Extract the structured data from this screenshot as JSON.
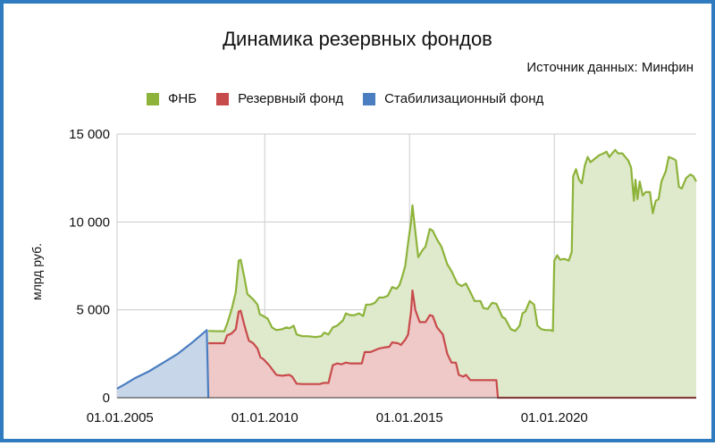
{
  "colors": {
    "fnb": "#8db33a",
    "reserve": "#c84b4b",
    "stab": "#4a7ec0",
    "fnb_fill": "#dfe9cc",
    "reserve_fill": "#efc8c8",
    "stab_fill": "#c8d6e9",
    "border": "#2f7bbf",
    "grid": "#cccccc"
  },
  "chart_data": {
    "type": "area",
    "title": "Динамика резервных фондов",
    "source": "Источник данных: Минфин",
    "ylabel": "млрд руб.",
    "xlabel": "",
    "xlim": [
      2004.9,
      2024.9
    ],
    "ylim": [
      0,
      15000
    ],
    "grid": true,
    "legend_position": "top",
    "x_ticks": [
      {
        "x": 2005,
        "label": "01.01.2005"
      },
      {
        "x": 2010,
        "label": "01.01.2010"
      },
      {
        "x": 2015,
        "label": "01.01.2015"
      },
      {
        "x": 2020,
        "label": "01.01.2020"
      }
    ],
    "y_ticks": [
      {
        "y": 0,
        "label": "0"
      },
      {
        "y": 5000,
        "label": "5 000"
      },
      {
        "y": 10000,
        "label": "10 000"
      },
      {
        "y": 15000,
        "label": "15 000"
      }
    ],
    "series": [
      {
        "name": "ФНБ",
        "key": "fnb",
        "points": [
          [
            2008.05,
            3800
          ],
          [
            2008.6,
            3780
          ],
          [
            2008.7,
            4200
          ],
          [
            2008.85,
            5000
          ],
          [
            2009.0,
            6000
          ],
          [
            2009.1,
            7800
          ],
          [
            2009.17,
            7850
          ],
          [
            2009.3,
            6800
          ],
          [
            2009.4,
            5900
          ],
          [
            2009.6,
            5600
          ],
          [
            2009.75,
            5300
          ],
          [
            2009.83,
            4750
          ],
          [
            2009.95,
            4650
          ],
          [
            2010.1,
            4500
          ],
          [
            2010.25,
            4000
          ],
          [
            2010.4,
            3850
          ],
          [
            2010.6,
            3900
          ],
          [
            2010.75,
            4000
          ],
          [
            2010.85,
            3950
          ],
          [
            2011.0,
            4100
          ],
          [
            2011.1,
            3600
          ],
          [
            2011.3,
            3500
          ],
          [
            2011.5,
            3500
          ],
          [
            2011.75,
            3450
          ],
          [
            2011.95,
            3500
          ],
          [
            2012.05,
            3700
          ],
          [
            2012.2,
            3600
          ],
          [
            2012.35,
            4000
          ],
          [
            2012.5,
            4100
          ],
          [
            2012.7,
            4400
          ],
          [
            2012.8,
            4800
          ],
          [
            2012.95,
            4700
          ],
          [
            2013.1,
            4700
          ],
          [
            2013.25,
            4800
          ],
          [
            2013.4,
            4650
          ],
          [
            2013.5,
            5300
          ],
          [
            2013.65,
            5300
          ],
          [
            2013.8,
            5400
          ],
          [
            2013.95,
            5700
          ],
          [
            2014.1,
            5700
          ],
          [
            2014.25,
            5800
          ],
          [
            2014.4,
            6300
          ],
          [
            2014.55,
            6200
          ],
          [
            2014.65,
            6400
          ],
          [
            2014.75,
            6900
          ],
          [
            2014.85,
            7500
          ],
          [
            2014.95,
            8800
          ],
          [
            2015.05,
            10000
          ],
          [
            2015.1,
            10950
          ],
          [
            2015.17,
            9900
          ],
          [
            2015.3,
            8000
          ],
          [
            2015.45,
            8400
          ],
          [
            2015.55,
            8600
          ],
          [
            2015.7,
            9600
          ],
          [
            2015.8,
            9500
          ],
          [
            2015.95,
            9000
          ],
          [
            2016.1,
            8600
          ],
          [
            2016.3,
            7600
          ],
          [
            2016.45,
            7200
          ],
          [
            2016.65,
            6500
          ],
          [
            2016.8,
            6350
          ],
          [
            2016.95,
            6500
          ],
          [
            2017.1,
            6000
          ],
          [
            2017.25,
            5500
          ],
          [
            2017.45,
            5500
          ],
          [
            2017.55,
            5100
          ],
          [
            2017.7,
            5050
          ],
          [
            2017.85,
            5400
          ],
          [
            2018.0,
            5350
          ],
          [
            2018.2,
            4600
          ],
          [
            2018.3,
            4500
          ],
          [
            2018.5,
            3900
          ],
          [
            2018.65,
            3800
          ],
          [
            2018.8,
            4100
          ],
          [
            2018.9,
            4800
          ],
          [
            2019.0,
            4900
          ],
          [
            2019.15,
            5500
          ],
          [
            2019.3,
            5300
          ],
          [
            2019.42,
            4100
          ],
          [
            2019.55,
            3900
          ],
          [
            2019.7,
            3850
          ],
          [
            2019.85,
            3850
          ],
          [
            2019.95,
            3800
          ],
          [
            2020.0,
            7800
          ],
          [
            2020.1,
            8100
          ],
          [
            2020.2,
            7850
          ],
          [
            2020.35,
            7900
          ],
          [
            2020.5,
            7800
          ],
          [
            2020.6,
            8300
          ],
          [
            2020.65,
            12600
          ],
          [
            2020.75,
            13000
          ],
          [
            2020.85,
            12400
          ],
          [
            2020.95,
            12200
          ],
          [
            2021.05,
            13200
          ],
          [
            2021.15,
            13700
          ],
          [
            2021.25,
            13400
          ],
          [
            2021.4,
            13600
          ],
          [
            2021.55,
            13800
          ],
          [
            2021.7,
            13900
          ],
          [
            2021.8,
            14000
          ],
          [
            2021.9,
            13700
          ],
          [
            2022.0,
            13900
          ],
          [
            2022.1,
            14100
          ],
          [
            2022.2,
            13900
          ],
          [
            2022.35,
            13900
          ],
          [
            2022.45,
            13700
          ],
          [
            2022.55,
            13500
          ],
          [
            2022.65,
            13100
          ],
          [
            2022.75,
            11200
          ],
          [
            2022.8,
            12400
          ],
          [
            2022.87,
            11300
          ],
          [
            2022.95,
            12300
          ],
          [
            2023.05,
            11500
          ],
          [
            2023.15,
            11700
          ],
          [
            2023.3,
            11700
          ],
          [
            2023.4,
            10500
          ],
          [
            2023.5,
            11200
          ],
          [
            2023.6,
            11300
          ],
          [
            2023.7,
            12300
          ],
          [
            2023.85,
            12900
          ],
          [
            2023.95,
            13700
          ],
          [
            2024.1,
            13600
          ],
          [
            2024.2,
            13500
          ],
          [
            2024.3,
            12000
          ],
          [
            2024.4,
            11900
          ],
          [
            2024.55,
            12500
          ],
          [
            2024.7,
            12700
          ],
          [
            2024.8,
            12600
          ],
          [
            2024.9,
            12300
          ]
        ]
      },
      {
        "name": "Резервный фонд",
        "key": "reserve",
        "points": [
          [
            2008.05,
            3100
          ],
          [
            2008.6,
            3100
          ],
          [
            2008.7,
            3550
          ],
          [
            2008.85,
            3650
          ],
          [
            2009.0,
            3900
          ],
          [
            2009.1,
            4900
          ],
          [
            2009.17,
            4950
          ],
          [
            2009.3,
            4100
          ],
          [
            2009.45,
            3250
          ],
          [
            2009.6,
            3100
          ],
          [
            2009.75,
            2800
          ],
          [
            2009.85,
            2300
          ],
          [
            2009.95,
            2200
          ],
          [
            2010.15,
            1850
          ],
          [
            2010.4,
            1300
          ],
          [
            2010.6,
            1250
          ],
          [
            2010.85,
            1300
          ],
          [
            2010.95,
            1200
          ],
          [
            2011.1,
            800
          ],
          [
            2011.3,
            780
          ],
          [
            2011.6,
            780
          ],
          [
            2011.9,
            780
          ],
          [
            2012.05,
            850
          ],
          [
            2012.2,
            840
          ],
          [
            2012.35,
            1850
          ],
          [
            2012.5,
            1950
          ],
          [
            2012.65,
            1900
          ],
          [
            2012.8,
            2000
          ],
          [
            2012.95,
            1950
          ],
          [
            2013.1,
            1950
          ],
          [
            2013.35,
            1950
          ],
          [
            2013.45,
            2600
          ],
          [
            2013.65,
            2600
          ],
          [
            2013.8,
            2700
          ],
          [
            2013.95,
            2800
          ],
          [
            2014.1,
            2850
          ],
          [
            2014.3,
            2900
          ],
          [
            2014.4,
            3150
          ],
          [
            2014.6,
            3100
          ],
          [
            2014.7,
            3000
          ],
          [
            2014.85,
            3300
          ],
          [
            2014.95,
            3600
          ],
          [
            2015.05,
            4900
          ],
          [
            2015.1,
            6100
          ],
          [
            2015.2,
            5000
          ],
          [
            2015.35,
            4300
          ],
          [
            2015.55,
            4300
          ],
          [
            2015.7,
            4700
          ],
          [
            2015.8,
            4650
          ],
          [
            2015.95,
            4000
          ],
          [
            2016.15,
            3600
          ],
          [
            2016.3,
            2500
          ],
          [
            2016.45,
            2000
          ],
          [
            2016.6,
            2000
          ],
          [
            2016.7,
            1300
          ],
          [
            2016.85,
            1200
          ],
          [
            2016.95,
            1300
          ],
          [
            2017.1,
            1000
          ],
          [
            2017.35,
            1000
          ],
          [
            2017.45,
            1000
          ],
          [
            2017.6,
            1000
          ],
          [
            2017.75,
            1000
          ],
          [
            2017.9,
            1000
          ],
          [
            2018.0,
            1000
          ],
          [
            2018.05,
            0
          ],
          [
            2024.9,
            0
          ]
        ]
      },
      {
        "name": "Стабилизационный фонд",
        "key": "stab",
        "points": [
          [
            2004.9,
            520
          ],
          [
            2005.2,
            800
          ],
          [
            2005.5,
            1100
          ],
          [
            2006.0,
            1500
          ],
          [
            2006.5,
            2000
          ],
          [
            2007.0,
            2500
          ],
          [
            2007.5,
            3150
          ],
          [
            2008.0,
            3850
          ],
          [
            2008.05,
            0
          ]
        ]
      }
    ]
  }
}
